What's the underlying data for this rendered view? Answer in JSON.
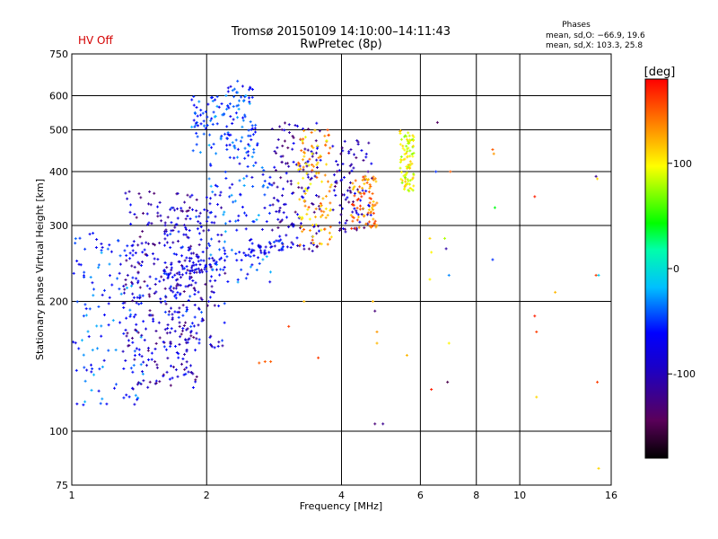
{
  "chart_data": {
    "type": "scatter",
    "title": "Tromsø 20150109 14:10:00–14:11:43",
    "subtitle": "RwPretec (8p)",
    "status_label": "HV Off",
    "xlabel": "Frequency [MHz]",
    "ylabel": "Stationary phase Virtual Height [km]",
    "x_scale": "log",
    "y_scale": "log",
    "xlim": [
      1,
      16
    ],
    "ylim": [
      75,
      750
    ],
    "x_ticks": [
      1,
      2,
      4,
      6,
      8,
      10,
      16
    ],
    "y_ticks": [
      75,
      100,
      200,
      300,
      400,
      500,
      600,
      750
    ],
    "grid": true,
    "phases": {
      "title": "Phases",
      "line_o": "mean, sd,O: −66.9, 19.6",
      "line_x": "mean, sd,X: 103.3, 25.8"
    },
    "colorbar": {
      "label": "[deg]",
      "range": [
        -180,
        180
      ],
      "ticks": [
        100,
        0,
        -100
      ],
      "colormap": "rainbow: black → purple → blue → cyan → green → yellow → orange → red"
    },
    "clusters": [
      {
        "f": [
          1.0,
          1.45
        ],
        "h": [
          115,
          290
        ],
        "phase": [
          -80,
          -20
        ],
        "n": 130
      },
      {
        "f": [
          1.3,
          1.95
        ],
        "h": [
          125,
          360
        ],
        "phase": [
          -140,
          -50
        ],
        "n": 300
      },
      {
        "f": [
          1.6,
          2.2
        ],
        "h": [
          150,
          330
        ],
        "phase": [
          -130,
          -40
        ],
        "n": 160
      },
      {
        "f": [
          1.85,
          2.2
        ],
        "h": [
          440,
          600
        ],
        "phase": [
          -70,
          -20
        ],
        "n": 60
      },
      {
        "f": [
          2.2,
          2.6
        ],
        "h": [
          420,
          650
        ],
        "phase": [
          -80,
          -20
        ],
        "n": 90
      },
      {
        "f": [
          2.0,
          2.8
        ],
        "h": [
          220,
          420
        ],
        "phase": [
          -90,
          -20
        ],
        "n": 110
      },
      {
        "f": [
          2.8,
          3.6
        ],
        "h": [
          260,
          520
        ],
        "phase": [
          -140,
          -60
        ],
        "n": 140
      },
      {
        "f": [
          3.2,
          3.8
        ],
        "h": [
          270,
          500
        ],
        "phase": [
          90,
          160
        ],
        "n": 110
      },
      {
        "f": [
          3.8,
          4.7
        ],
        "h": [
          290,
          480
        ],
        "phase": [
          -140,
          -60
        ],
        "n": 90
      },
      {
        "f": [
          4.2,
          4.8
        ],
        "h": [
          295,
          390
        ],
        "phase": [
          110,
          170
        ],
        "n": 80
      },
      {
        "f": [
          5.4,
          5.8
        ],
        "h": [
          360,
          500
        ],
        "phase": [
          70,
          120
        ],
        "n": 90
      }
    ],
    "ridge": {
      "from": [
        1.6,
        230
      ],
      "to": [
        3.1,
        275
      ],
      "phase": [
        -100,
        -40
      ],
      "n": 80
    },
    "isolated": [
      {
        "x": 2.7,
        "y": 145,
        "phase": 150
      },
      {
        "x": 2.78,
        "y": 145,
        "phase": 150
      },
      {
        "x": 2.62,
        "y": 144,
        "phase": 150
      },
      {
        "x": 3.55,
        "y": 148,
        "phase": 160
      },
      {
        "x": 3.05,
        "y": 175,
        "phase": 160
      },
      {
        "x": 3.3,
        "y": 200,
        "phase": 120
      },
      {
        "x": 4.7,
        "y": 200,
        "phase": 120
      },
      {
        "x": 4.75,
        "y": 190,
        "phase": -130
      },
      {
        "x": 4.8,
        "y": 170,
        "phase": 130
      },
      {
        "x": 4.8,
        "y": 160,
        "phase": 120
      },
      {
        "x": 4.95,
        "y": 104,
        "phase": -120
      },
      {
        "x": 4.75,
        "y": 104,
        "phase": -130
      },
      {
        "x": 5.6,
        "y": 150,
        "phase": 120
      },
      {
        "x": 6.35,
        "y": 125,
        "phase": 170
      },
      {
        "x": 6.3,
        "y": 280,
        "phase": 110
      },
      {
        "x": 6.35,
        "y": 260,
        "phase": 100
      },
      {
        "x": 6.3,
        "y": 225,
        "phase": 100
      },
      {
        "x": 6.8,
        "y": 280,
        "phase": 80
      },
      {
        "x": 6.85,
        "y": 265,
        "phase": -110
      },
      {
        "x": 6.95,
        "y": 230,
        "phase": -30
      },
      {
        "x": 6.95,
        "y": 160,
        "phase": 100
      },
      {
        "x": 6.9,
        "y": 130,
        "phase": -150
      },
      {
        "x": 6.55,
        "y": 520,
        "phase": -140
      },
      {
        "x": 6.5,
        "y": 400,
        "phase": -50
      },
      {
        "x": 7.0,
        "y": 400,
        "phase": 150
      },
      {
        "x": 8.7,
        "y": 450,
        "phase": 150
      },
      {
        "x": 8.75,
        "y": 440,
        "phase": 130
      },
      {
        "x": 8.8,
        "y": 330,
        "phase": 40
      },
      {
        "x": 8.7,
        "y": 250,
        "phase": -50
      },
      {
        "x": 10.8,
        "y": 185,
        "phase": 170
      },
      {
        "x": 10.9,
        "y": 170,
        "phase": 160
      },
      {
        "x": 10.9,
        "y": 120,
        "phase": 110
      },
      {
        "x": 10.8,
        "y": 350,
        "phase": 170
      },
      {
        "x": 12.0,
        "y": 210,
        "phase": 120
      },
      {
        "x": 14.8,
        "y": 390,
        "phase": -120
      },
      {
        "x": 14.9,
        "y": 385,
        "phase": 110
      },
      {
        "x": 14.8,
        "y": 230,
        "phase": 160
      },
      {
        "x": 15.0,
        "y": 230,
        "phase": -10
      },
      {
        "x": 14.9,
        "y": 130,
        "phase": 160
      },
      {
        "x": 15.0,
        "y": 82,
        "phase": 110
      }
    ]
  }
}
